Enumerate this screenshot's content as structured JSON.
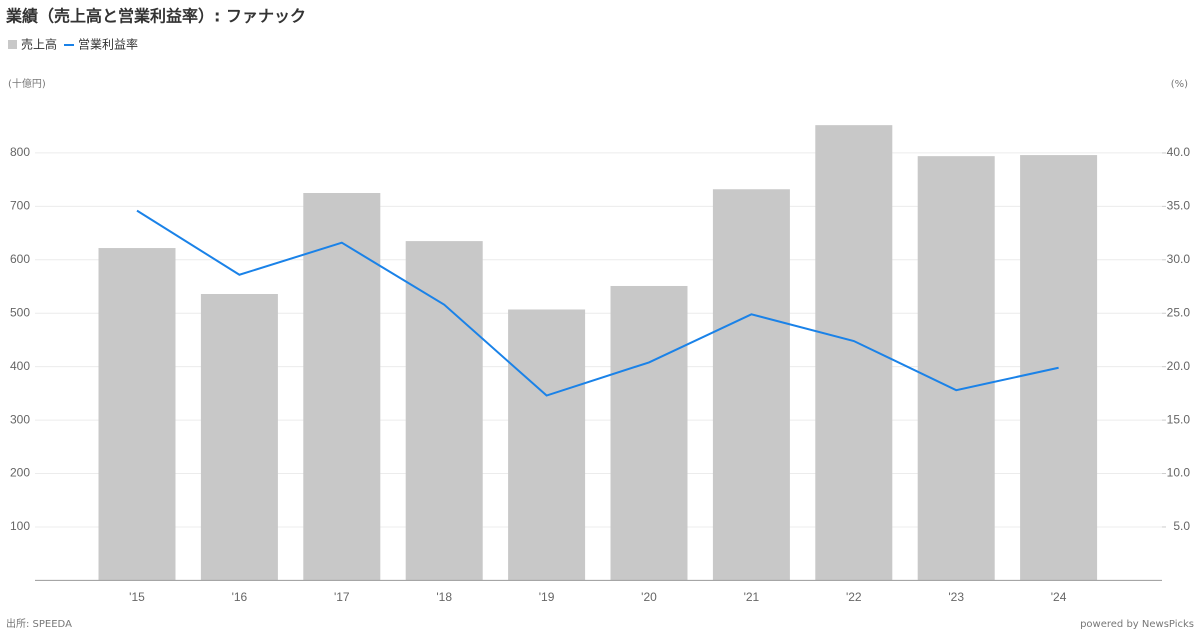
{
  "chart_data": {
    "type": "bar",
    "title": "業績（売上高と営業利益率）: ファナック",
    "y_label": "(十億円)",
    "y2_label": "(%)",
    "source": "出所: SPEEDA",
    "credit": "powered by NewsPicks",
    "categories": [
      "'15",
      "'16",
      "'17",
      "'18",
      "'19",
      "'20",
      "'21",
      "'22",
      "'23",
      "'24"
    ],
    "series": [
      {
        "name": "売上高",
        "type": "bar",
        "color": "#c8c8c8",
        "values": [
          622,
          536,
          725,
          635,
          507,
          551,
          732,
          852,
          794,
          796
        ]
      },
      {
        "name": "営業利益率",
        "type": "line",
        "axis": "y2",
        "color": "#1a82e8",
        "values": [
          34.6,
          28.6,
          31.6,
          25.8,
          17.3,
          20.4,
          24.9,
          22.4,
          17.8,
          19.9
        ]
      }
    ],
    "ylim": [
      0,
      900
    ],
    "yticks": [
      100,
      200,
      300,
      400,
      500,
      600,
      700,
      800
    ],
    "y2lim": [
      0,
      45
    ],
    "y2ticks": [
      {
        "value": 5,
        "label": "5.0"
      },
      {
        "value": 10,
        "label": "10.0"
      },
      {
        "value": 15,
        "label": "15.0"
      },
      {
        "value": 20,
        "label": "20.0"
      },
      {
        "value": 25,
        "label": "25.0"
      },
      {
        "value": 30,
        "label": "30.0"
      },
      {
        "value": 35,
        "label": "35.0"
      },
      {
        "value": 40,
        "label": "40.0"
      }
    ],
    "grid": true
  }
}
